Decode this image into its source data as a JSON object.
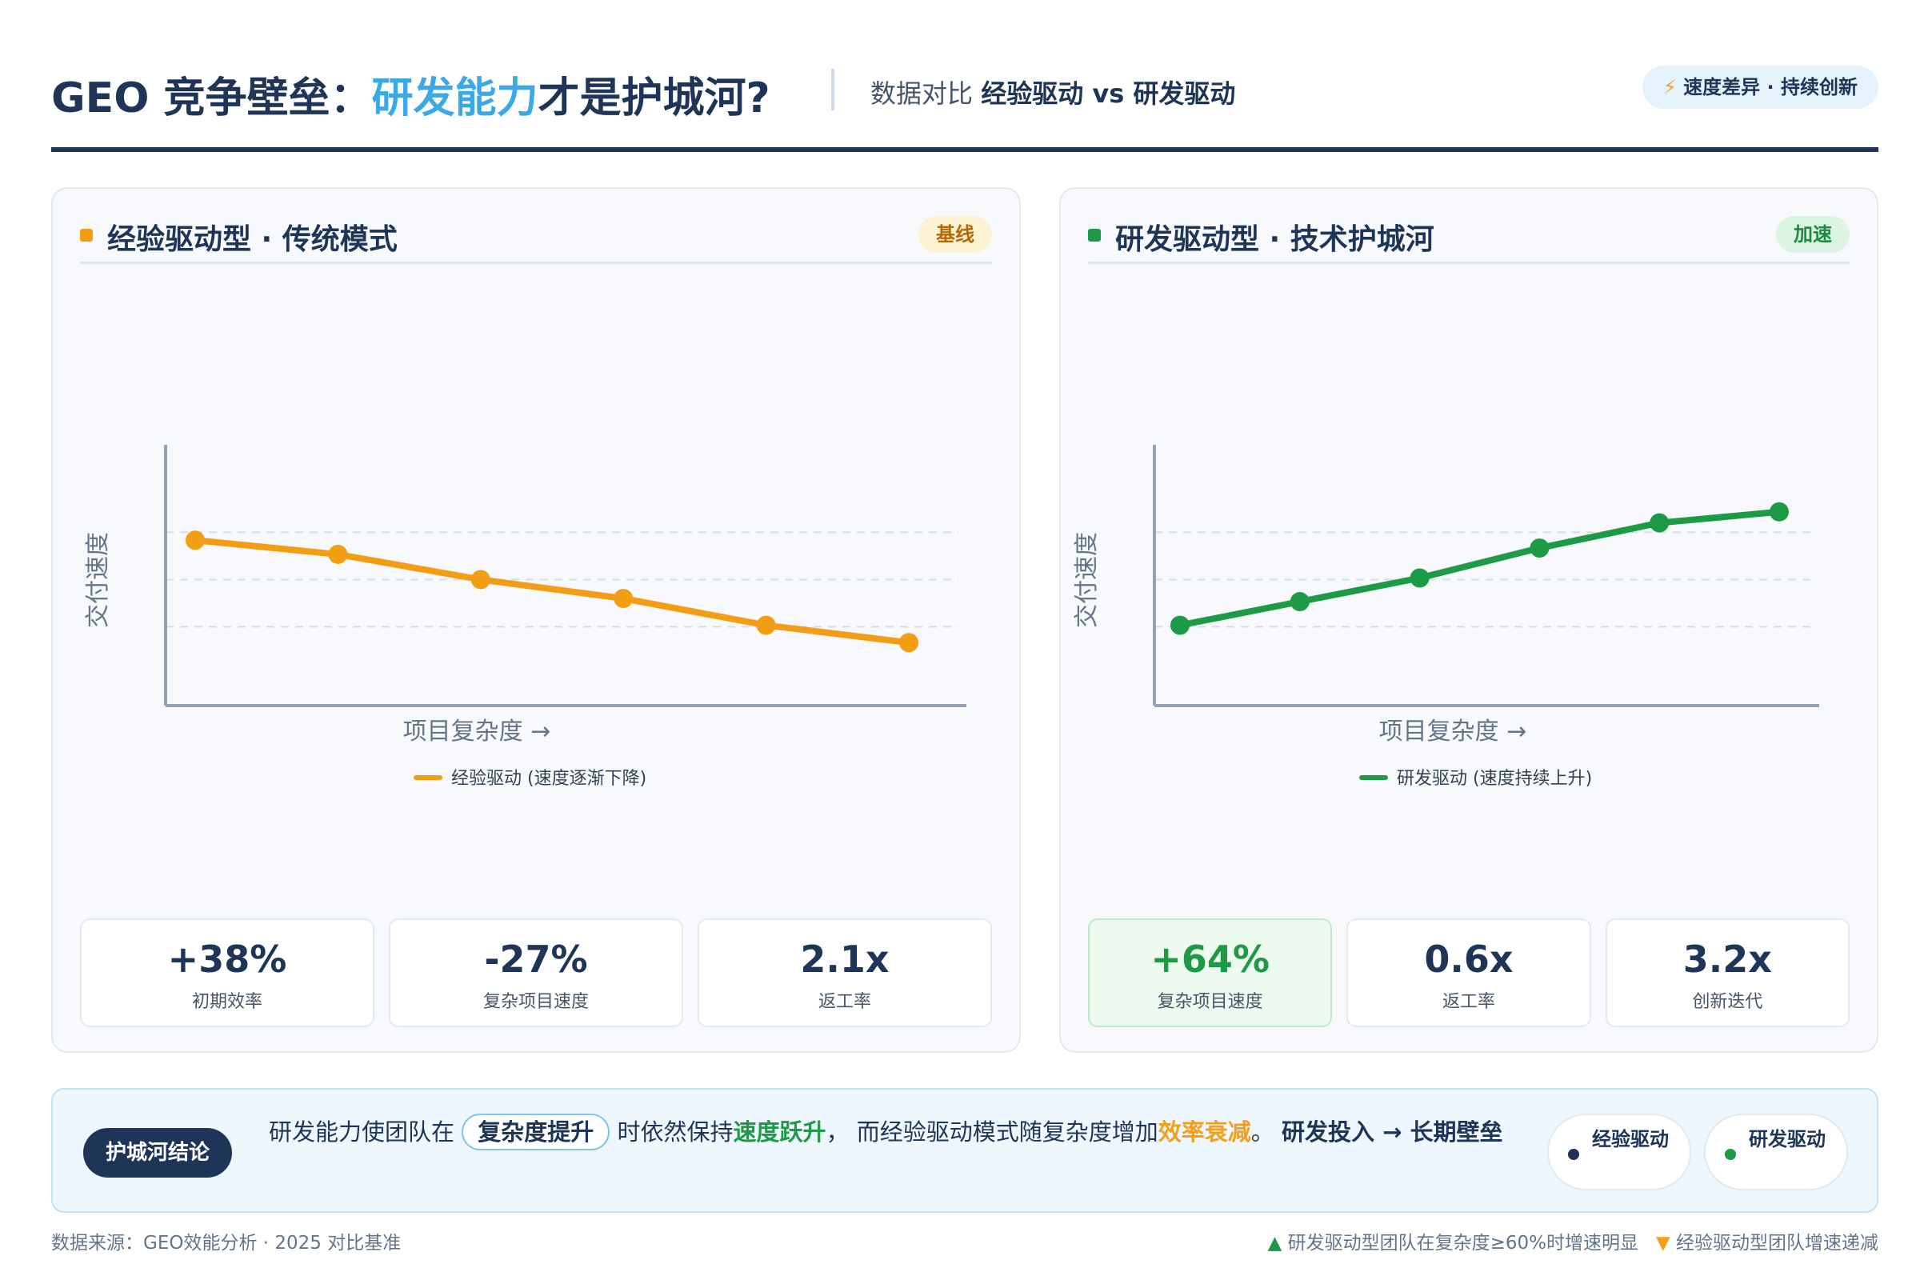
{
  "header": {
    "title_prefix": "GEO 竞争壁垒：",
    "title_highlight": "研发能力",
    "title_suffix": "才是护城河?",
    "subtitle_plain": "数据对比",
    "subtitle_bold": "经验驱动 vs 研发驱动",
    "badge_icon": "⚡",
    "badge": "速度差异 · 持续创新"
  },
  "panels": {
    "left": {
      "title": "经验驱动型 · 传统模式",
      "tag": "基线",
      "color": "#f29d14",
      "stats": [
        {
          "value": "+38%",
          "label": "初期效率"
        },
        {
          "value": "-27%",
          "label": "复杂项目速度"
        },
        {
          "value": "2.1x",
          "label": "返工率"
        }
      ]
    },
    "right": {
      "title": "研发驱动型 · 技术护城河",
      "tag": "加速",
      "color": "#1c9a46",
      "stats": [
        {
          "value": "+64%",
          "label": "复杂项目速度"
        },
        {
          "value": "0.6x",
          "label": "返工率"
        },
        {
          "value": "3.2x",
          "label": "创新迭代"
        }
      ]
    }
  },
  "chart_data": [
    {
      "type": "line",
      "xlabel": "项目复杂度 →",
      "ylabel": "交付速度",
      "x": [
        1,
        2,
        3,
        4,
        5,
        6
      ],
      "series": [
        {
          "name": "经验驱动 (速度逐渐下降)",
          "values": [
            0.75,
            0.66,
            0.5,
            0.38,
            0.21,
            0.1
          ],
          "color": "#f29d14"
        }
      ],
      "ylim": [
        -0.3,
        1.0
      ],
      "grid": true,
      "legend": "bottom"
    },
    {
      "type": "line",
      "xlabel": "项目复杂度 →",
      "ylabel": "交付速度",
      "x": [
        1,
        2,
        3,
        4,
        5,
        6
      ],
      "series": [
        {
          "name": "研发驱动 (速度持续上升)",
          "values": [
            0.21,
            0.36,
            0.51,
            0.7,
            0.86,
            0.93
          ],
          "color": "#1c9a46"
        }
      ],
      "ylim": [
        -0.3,
        1.0
      ],
      "grid": true,
      "legend": "bottom"
    }
  ],
  "conclusion": {
    "pill": "护城河结论",
    "t1": "研发能力使团队在",
    "box": "复杂度提升",
    "t2": "时依然保持",
    "g": "速度跃升",
    "t3": "， 而经验驱动模式随复杂度增加",
    "o": "效率衰减",
    "t4": "。",
    "strong": "研发投入 → 长期壁垒",
    "chip1": "经验驱动",
    "chip2": "研发驱动"
  },
  "footer": {
    "source": "数据来源：GEO效能分析 · 2025 对比基准",
    "note_up": "研发驱动型团队在复杂度≥60%时增速明显",
    "note_down": "经验驱动型团队增速递减"
  }
}
